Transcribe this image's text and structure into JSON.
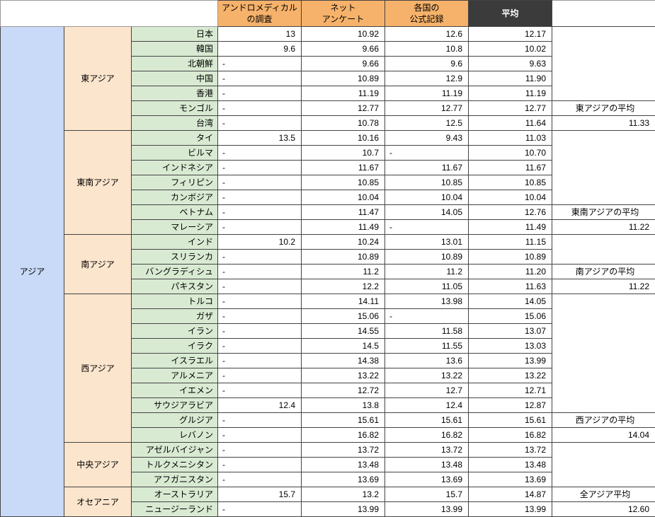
{
  "colors": {
    "region_bg": "#c9daf8",
    "subregion_bg": "#fce5cd",
    "country_bg": "#d9ead3",
    "hdr_orange": "#f6b26b",
    "hdr_dark_bg": "#3b3b3b",
    "hdr_dark_fg": "#ffffff",
    "grid_border": "#444444"
  },
  "fontsize_pt": 12,
  "headers": {
    "col1": "アンドロメディカル\nの調査",
    "col2": "ネット\nアンケート",
    "col3": "各国の\n公式記録",
    "col4": "平均"
  },
  "region": "アジア",
  "subregions": [
    {
      "name": "東アジア",
      "avg_label": "東アジアの平均",
      "avg_value": "11.33",
      "rows": [
        {
          "country": "日本",
          "v": [
            "13",
            "10.92",
            "12.6",
            "12.17"
          ]
        },
        {
          "country": "韓国",
          "v": [
            "9.6",
            "9.66",
            "10.8",
            "10.02"
          ]
        },
        {
          "country": "北朝鮮",
          "v": [
            "-",
            "9.66",
            "9.6",
            "9.63"
          ]
        },
        {
          "country": "中国",
          "v": [
            "-",
            "10.89",
            "12.9",
            "11.90"
          ]
        },
        {
          "country": "香港",
          "v": [
            "-",
            "11.19",
            "11.19",
            "11.19"
          ]
        },
        {
          "country": "モンゴル",
          "v": [
            "-",
            "12.77",
            "12.77",
            "12.77"
          ]
        },
        {
          "country": "台湾",
          "v": [
            "-",
            "10.78",
            "12.5",
            "11.64"
          ]
        }
      ]
    },
    {
      "name": "東南アジア",
      "avg_label": "東南アジアの平均",
      "avg_value": "11.22",
      "rows": [
        {
          "country": "タイ",
          "v": [
            "13.5",
            "10.16",
            "9.43",
            "11.03"
          ]
        },
        {
          "country": "ビルマ",
          "v": [
            "-",
            "10.7",
            "-",
            "10.70"
          ]
        },
        {
          "country": "インドネシア",
          "v": [
            "-",
            "11.67",
            "11.67",
            "11.67"
          ]
        },
        {
          "country": "フィリピン",
          "v": [
            "-",
            "10.85",
            "10.85",
            "10.85"
          ]
        },
        {
          "country": "カンボジア",
          "v": [
            "-",
            "10.04",
            "10.04",
            "10.04"
          ]
        },
        {
          "country": "ベトナム",
          "v": [
            "-",
            "11.47",
            "14.05",
            "12.76"
          ]
        },
        {
          "country": "マレーシア",
          "v": [
            "-",
            "11.49",
            "-",
            "11.49"
          ]
        }
      ]
    },
    {
      "name": "南アジア",
      "avg_label": "南アジアの平均",
      "avg_value": "11.22",
      "rows": [
        {
          "country": "インド",
          "v": [
            "10.2",
            "10.24",
            "13.01",
            "11.15"
          ]
        },
        {
          "country": "スリランカ",
          "v": [
            "-",
            "10.89",
            "10.89",
            "10.89"
          ]
        },
        {
          "country": "バングラディシュ",
          "v": [
            "-",
            "11.2",
            "11.2",
            "11.20"
          ]
        },
        {
          "country": "パキスタン",
          "v": [
            "-",
            "12.2",
            "11.05",
            "11.63"
          ]
        }
      ]
    },
    {
      "name": "西アジア",
      "avg_label": "西アジアの平均",
      "avg_value": "14.04",
      "rows": [
        {
          "country": "トルコ",
          "v": [
            "-",
            "14.11",
            "13.98",
            "14.05"
          ]
        },
        {
          "country": "ガザ",
          "v": [
            "-",
            "15.06",
            "-",
            "15.06"
          ]
        },
        {
          "country": "イラン",
          "v": [
            "-",
            "14.55",
            "11.58",
            "13.07"
          ]
        },
        {
          "country": "イラク",
          "v": [
            "-",
            "14.5",
            "11.55",
            "13.03"
          ]
        },
        {
          "country": "イスラエル",
          "v": [
            "-",
            "14.38",
            "13.6",
            "13.99"
          ]
        },
        {
          "country": "アルメニア",
          "v": [
            "-",
            "13.22",
            "13.22",
            "13.22"
          ]
        },
        {
          "country": "イエメン",
          "v": [
            "-",
            "12.72",
            "12.7",
            "12.71"
          ]
        },
        {
          "country": "サウジアラビア",
          "v": [
            "12.4",
            "13.8",
            "12.4",
            "12.87"
          ]
        },
        {
          "country": "グルジア",
          "v": [
            "-",
            "15.61",
            "15.61",
            "15.61"
          ]
        },
        {
          "country": "レバノン",
          "v": [
            "-",
            "16.82",
            "16.82",
            "16.82"
          ]
        }
      ]
    },
    {
      "name": "中央アジア",
      "avg_label": null,
      "avg_value": null,
      "rows": [
        {
          "country": "アゼルバイジャン",
          "v": [
            "-",
            "13.72",
            "13.72",
            "13.72"
          ]
        },
        {
          "country": "トルクメニシタン",
          "v": [
            "-",
            "13.48",
            "13.48",
            "13.48"
          ]
        },
        {
          "country": "アフガニスタン",
          "v": [
            "-",
            "13.69",
            "13.69",
            "13.69"
          ]
        }
      ]
    },
    {
      "name": "オセアニア",
      "avg_label": "全アジア平均",
      "avg_value": "12.60",
      "rows": [
        {
          "country": "オーストラリア",
          "v": [
            "15.7",
            "13.2",
            "15.7",
            "14.87"
          ]
        },
        {
          "country": "ニュージーランド",
          "v": [
            "-",
            "13.99",
            "13.99",
            "13.99"
          ]
        }
      ]
    }
  ]
}
